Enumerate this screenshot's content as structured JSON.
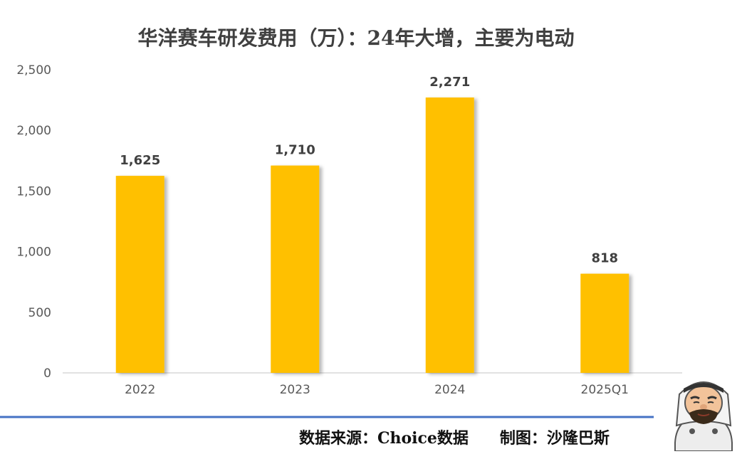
{
  "chart_data": {
    "type": "bar",
    "title": "华洋赛车研发费用（万）：24年大增，主要为电动",
    "categories": [
      "2022",
      "2023",
      "2024",
      "2025Q1"
    ],
    "values": [
      1625,
      1710,
      2271,
      818
    ],
    "data_labels": [
      "1,625",
      "1,710",
      "2,271",
      "818"
    ],
    "y_ticks": [
      "0",
      "500",
      "1,000",
      "1,500",
      "2,000",
      "2,500"
    ],
    "y_tick_values": [
      0,
      500,
      1000,
      1500,
      2000,
      2500
    ],
    "ylim": [
      0,
      2500
    ],
    "xlabel": "",
    "ylabel": "",
    "grid": false,
    "bar_color": "#FFC000"
  },
  "footer": {
    "source": "数据来源：Choice数据　　制图：沙隆巴斯"
  },
  "colors": {
    "footer_line": "#4472C4",
    "axis_line": "#D9D9D9",
    "text": "#595959"
  },
  "mascot": {
    "icon": "cartoon-man-with-keffiyeh"
  }
}
